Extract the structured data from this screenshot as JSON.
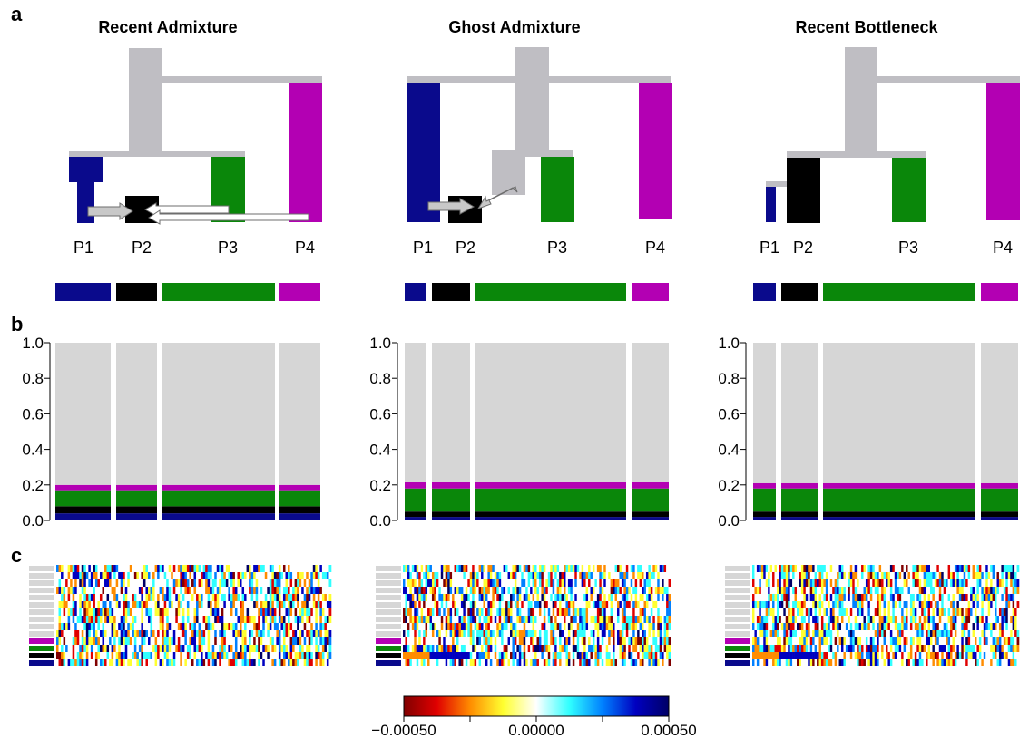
{
  "panel_labels": {
    "a": "a",
    "b": "b",
    "c": "c"
  },
  "titles": [
    "Recent Admixture",
    "Ghost Admixture",
    "Recent Bottleneck"
  ],
  "population_labels": [
    "P1",
    "P2",
    "P3",
    "P4"
  ],
  "colors": {
    "P1": "#0a0a8c",
    "P2": "#000000",
    "P3": "#0a870a",
    "P4": "#b300b3",
    "ancestral": "#bfbec3",
    "structure_background": "#d6d6d6",
    "arrow_fill": "#c8c8c8",
    "arrow_stroke": "#6e6e6e"
  },
  "chart_data": [
    {
      "type": "bar",
      "panel": "b",
      "scenario": "Recent Admixture",
      "ylim": [
        0,
        1.0
      ],
      "yticks": [
        "0.0",
        "0.2",
        "0.4",
        "0.6",
        "0.8",
        "1.0"
      ],
      "categories": [
        "P1",
        "P2",
        "P3",
        "P4"
      ],
      "stacked": true,
      "series": [
        {
          "color": "P1",
          "values": [
            0.04,
            0.04,
            0.04,
            0.04
          ]
        },
        {
          "color": "P2",
          "values": [
            0.04,
            0.04,
            0.04,
            0.04
          ]
        },
        {
          "color": "P3",
          "values": [
            0.09,
            0.09,
            0.09,
            0.09
          ]
        },
        {
          "color": "P4",
          "values": [
            0.03,
            0.03,
            0.03,
            0.03
          ]
        },
        {
          "color": "ancestral",
          "values": [
            0.8,
            0.8,
            0.8,
            0.8
          ]
        }
      ]
    },
    {
      "type": "bar",
      "panel": "b",
      "scenario": "Ghost Admixture",
      "ylim": [
        0,
        1.0
      ],
      "yticks": [
        "0.0",
        "0.2",
        "0.4",
        "0.6",
        "0.8",
        "1.0"
      ],
      "categories": [
        "P1",
        "P2",
        "P3",
        "P4"
      ],
      "stacked": true,
      "series": [
        {
          "color": "P1",
          "values": [
            0.02,
            0.02,
            0.02,
            0.02
          ]
        },
        {
          "color": "P2",
          "values": [
            0.03,
            0.03,
            0.03,
            0.03
          ]
        },
        {
          "color": "P3",
          "values": [
            0.13,
            0.13,
            0.13,
            0.13
          ]
        },
        {
          "color": "P4",
          "values": [
            0.035,
            0.035,
            0.035,
            0.035
          ]
        },
        {
          "color": "ancestral",
          "values": [
            0.785,
            0.785,
            0.785,
            0.785
          ]
        }
      ]
    },
    {
      "type": "bar",
      "panel": "b",
      "scenario": "Recent Bottleneck",
      "ylim": [
        0,
        1.0
      ],
      "yticks": [
        "0.0",
        "0.2",
        "0.4",
        "0.6",
        "0.8",
        "1.0"
      ],
      "categories": [
        "P1",
        "P2",
        "P3",
        "P4"
      ],
      "stacked": true,
      "series": [
        {
          "color": "P1",
          "values": [
            0.02,
            0.02,
            0.02,
            0.02
          ]
        },
        {
          "color": "P2",
          "values": [
            0.03,
            0.03,
            0.03,
            0.03
          ]
        },
        {
          "color": "P3",
          "values": [
            0.13,
            0.13,
            0.13,
            0.13
          ]
        },
        {
          "color": "P4",
          "values": [
            0.03,
            0.03,
            0.03,
            0.03
          ]
        },
        {
          "color": "ancestral",
          "values": [
            0.79,
            0.79,
            0.79,
            0.79
          ]
        }
      ]
    }
  ],
  "colorbar": {
    "min_label": "−0.00050",
    "mid_label": "0.00000",
    "max_label": "0.00050",
    "stops": [
      "#800000",
      "#e00000",
      "#ff8c00",
      "#ffff30",
      "#ffffff",
      "#30ffff",
      "#0080ff",
      "#0000c0",
      "#000066"
    ]
  }
}
